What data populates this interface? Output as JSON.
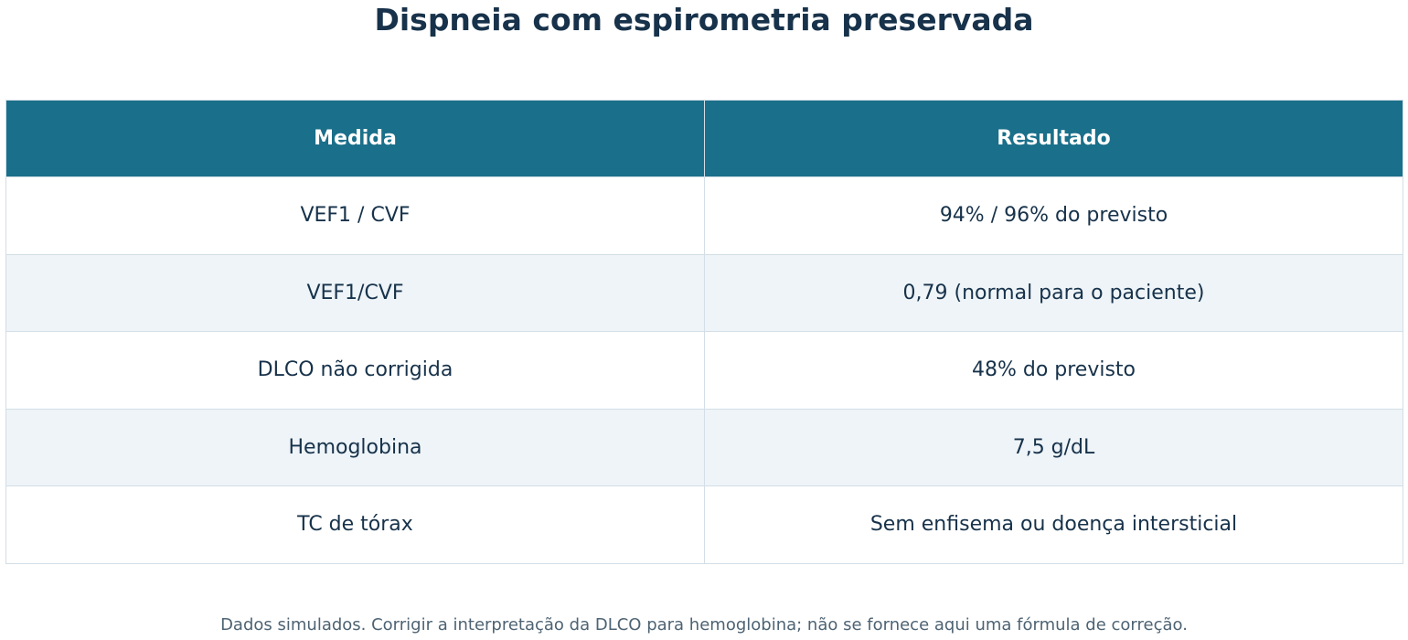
{
  "title": "Dispneia com espirometria preservada",
  "table": {
    "headers": [
      "Medida",
      "Resultado"
    ],
    "rows": [
      {
        "measure": "VEF1 / CVF",
        "result": "94% / 96% do previsto"
      },
      {
        "measure": "VEF1/CVF",
        "result": "0,79 (normal para o paciente)"
      },
      {
        "measure": "DLCO não corrigida",
        "result": "48% do previsto"
      },
      {
        "measure": "Hemoglobina",
        "result": "7,5 g/dL"
      },
      {
        "measure": "TC de tórax",
        "result": "Sem enfisema ou doença intersticial"
      }
    ]
  },
  "footnote": "Dados simulados. Corrigir a interpretação da DLCO para hemoglobina; não se fornece aqui uma fórmula de correção.",
  "colors": {
    "header_bg": "#1a6f8a",
    "header_text": "#ffffff",
    "text": "#17324a",
    "stripe": "#eef4f8",
    "border": "#d3dee6",
    "footnote": "#4e6373"
  }
}
